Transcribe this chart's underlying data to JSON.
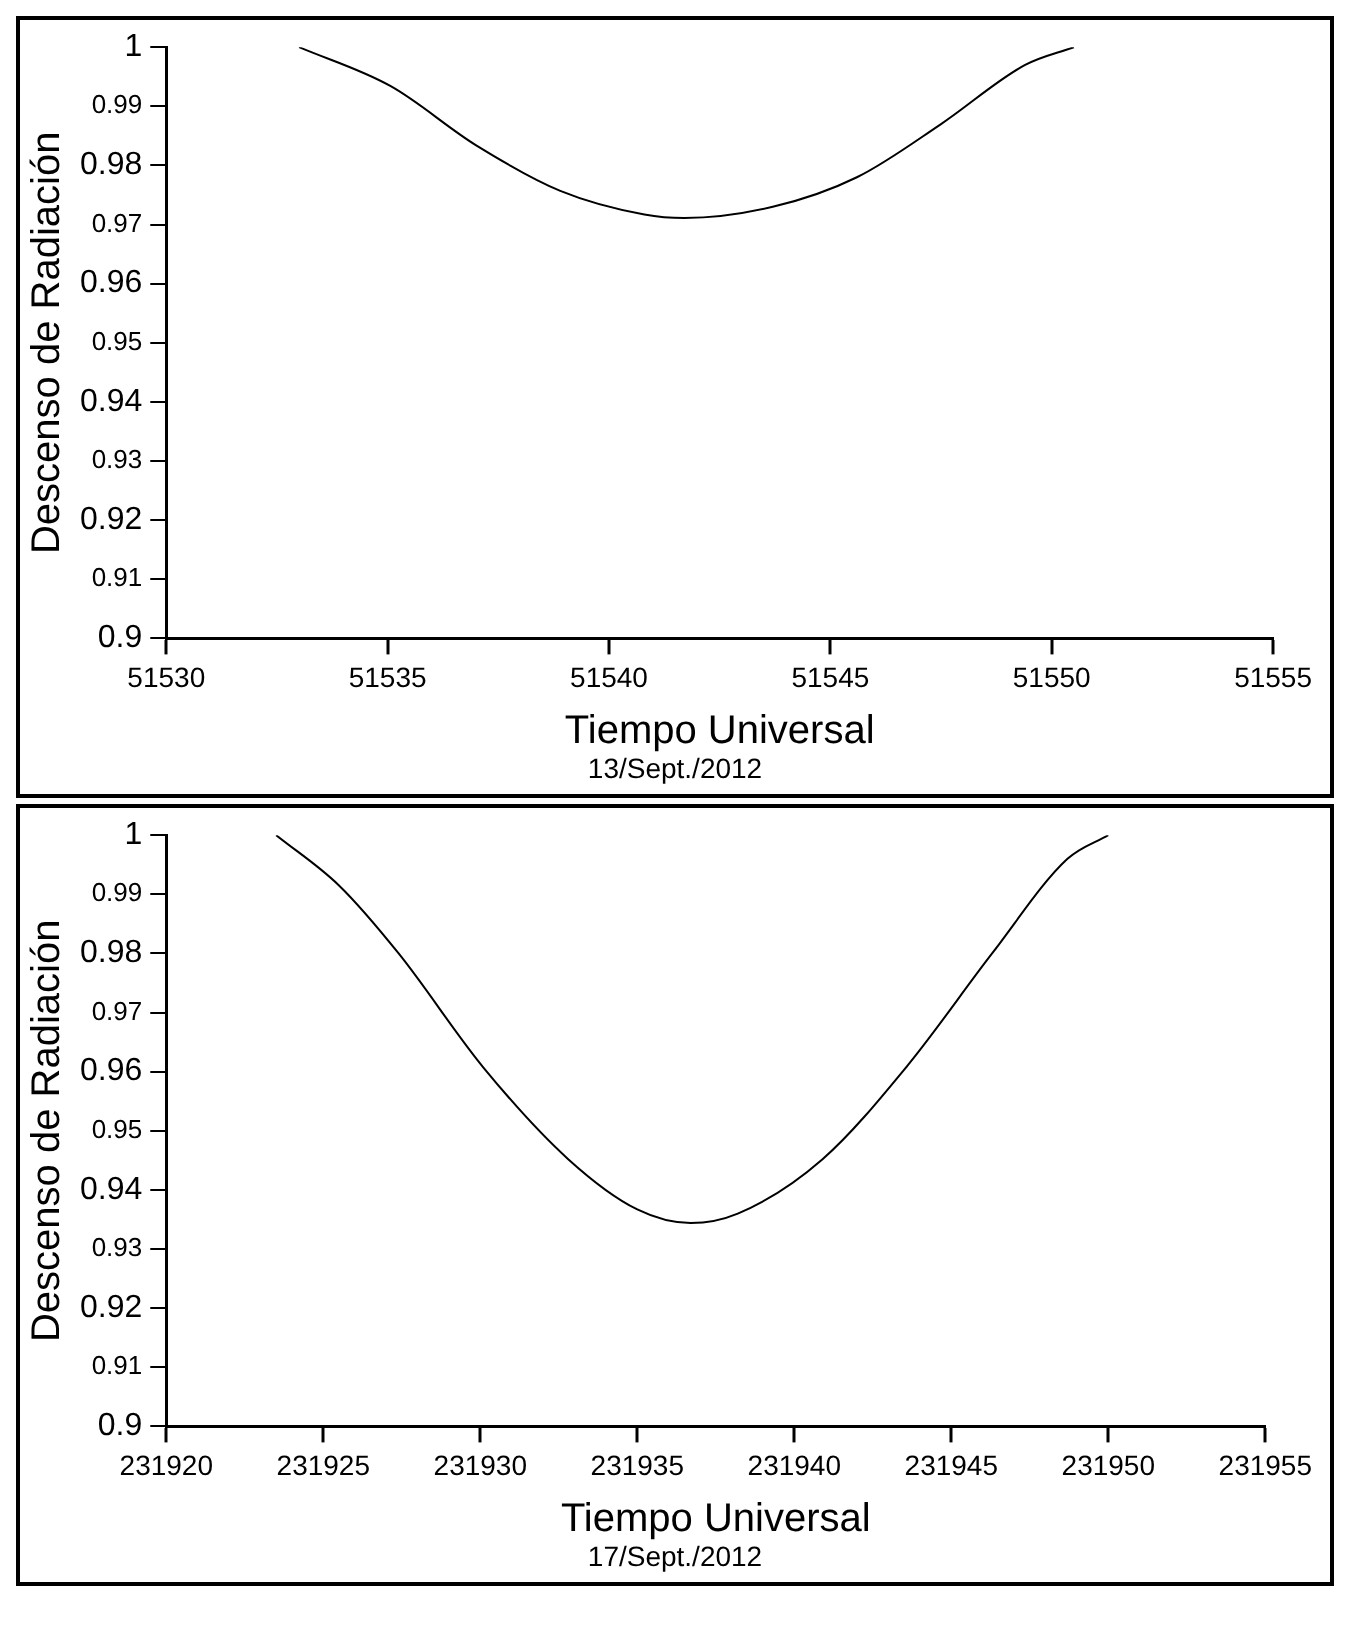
{
  "chart_data": [
    {
      "type": "line",
      "xlabel": "Tiempo Universal",
      "ylabel": "Descenso de Radiación",
      "annotations": [
        "13/Sept./2012"
      ],
      "series": [
        {
          "color": "#000000",
          "x": [
            51533.0,
            51535.07,
            51537.0,
            51538.9,
            51540.8,
            51541.7,
            51543.7,
            51545.6,
            51547.5,
            51549.4,
            51550.5
          ],
          "values": [
            1.0,
            0.9934,
            0.9834,
            0.9757,
            0.9717,
            0.9711,
            0.973,
            0.978,
            0.987,
            0.997,
            1.0
          ]
        }
      ],
      "xlim": [
        51530,
        51555
      ],
      "xticks": [
        51530,
        51535,
        51540,
        51545,
        51550,
        51555
      ],
      "ylim": [
        0.9,
        1
      ],
      "yticks": [
        0.9,
        0.91,
        0.92,
        0.93,
        0.94,
        0.95,
        0.96,
        0.97,
        0.98,
        0.99,
        1
      ],
      "grid": false,
      "legend": false,
      "marker": "none",
      "line_style": "solid"
    },
    {
      "type": "line",
      "xlabel": "Tiempo Universal",
      "ylabel": "Descenso de Radiación",
      "annotations": [
        "17/Sept./2012"
      ],
      "series": [
        {
          "color": "#000000",
          "x": [
            231923.5,
            231925.5,
            231927.4,
            231930.1,
            231932.8,
            231935.0,
            231936.7,
            231938.2,
            231940.9,
            231943.6,
            231946.3,
            231948.7,
            231950.0
          ],
          "values": [
            1.0,
            0.9915,
            0.98,
            0.9607,
            0.9452,
            0.9367,
            0.9344,
            0.936,
            0.9452,
            0.961,
            0.98,
            0.996,
            1.0
          ]
        }
      ],
      "xlim": [
        231920,
        231955
      ],
      "xticks": [
        231920,
        231925,
        231930,
        231935,
        231940,
        231945,
        231950,
        231955
      ],
      "ylim": [
        0.9,
        1
      ],
      "yticks": [
        0.9,
        0.91,
        0.92,
        0.93,
        0.94,
        0.95,
        0.96,
        0.97,
        0.98,
        0.99,
        1
      ],
      "grid": false,
      "legend": false,
      "marker": "none",
      "line_style": "solid"
    }
  ]
}
